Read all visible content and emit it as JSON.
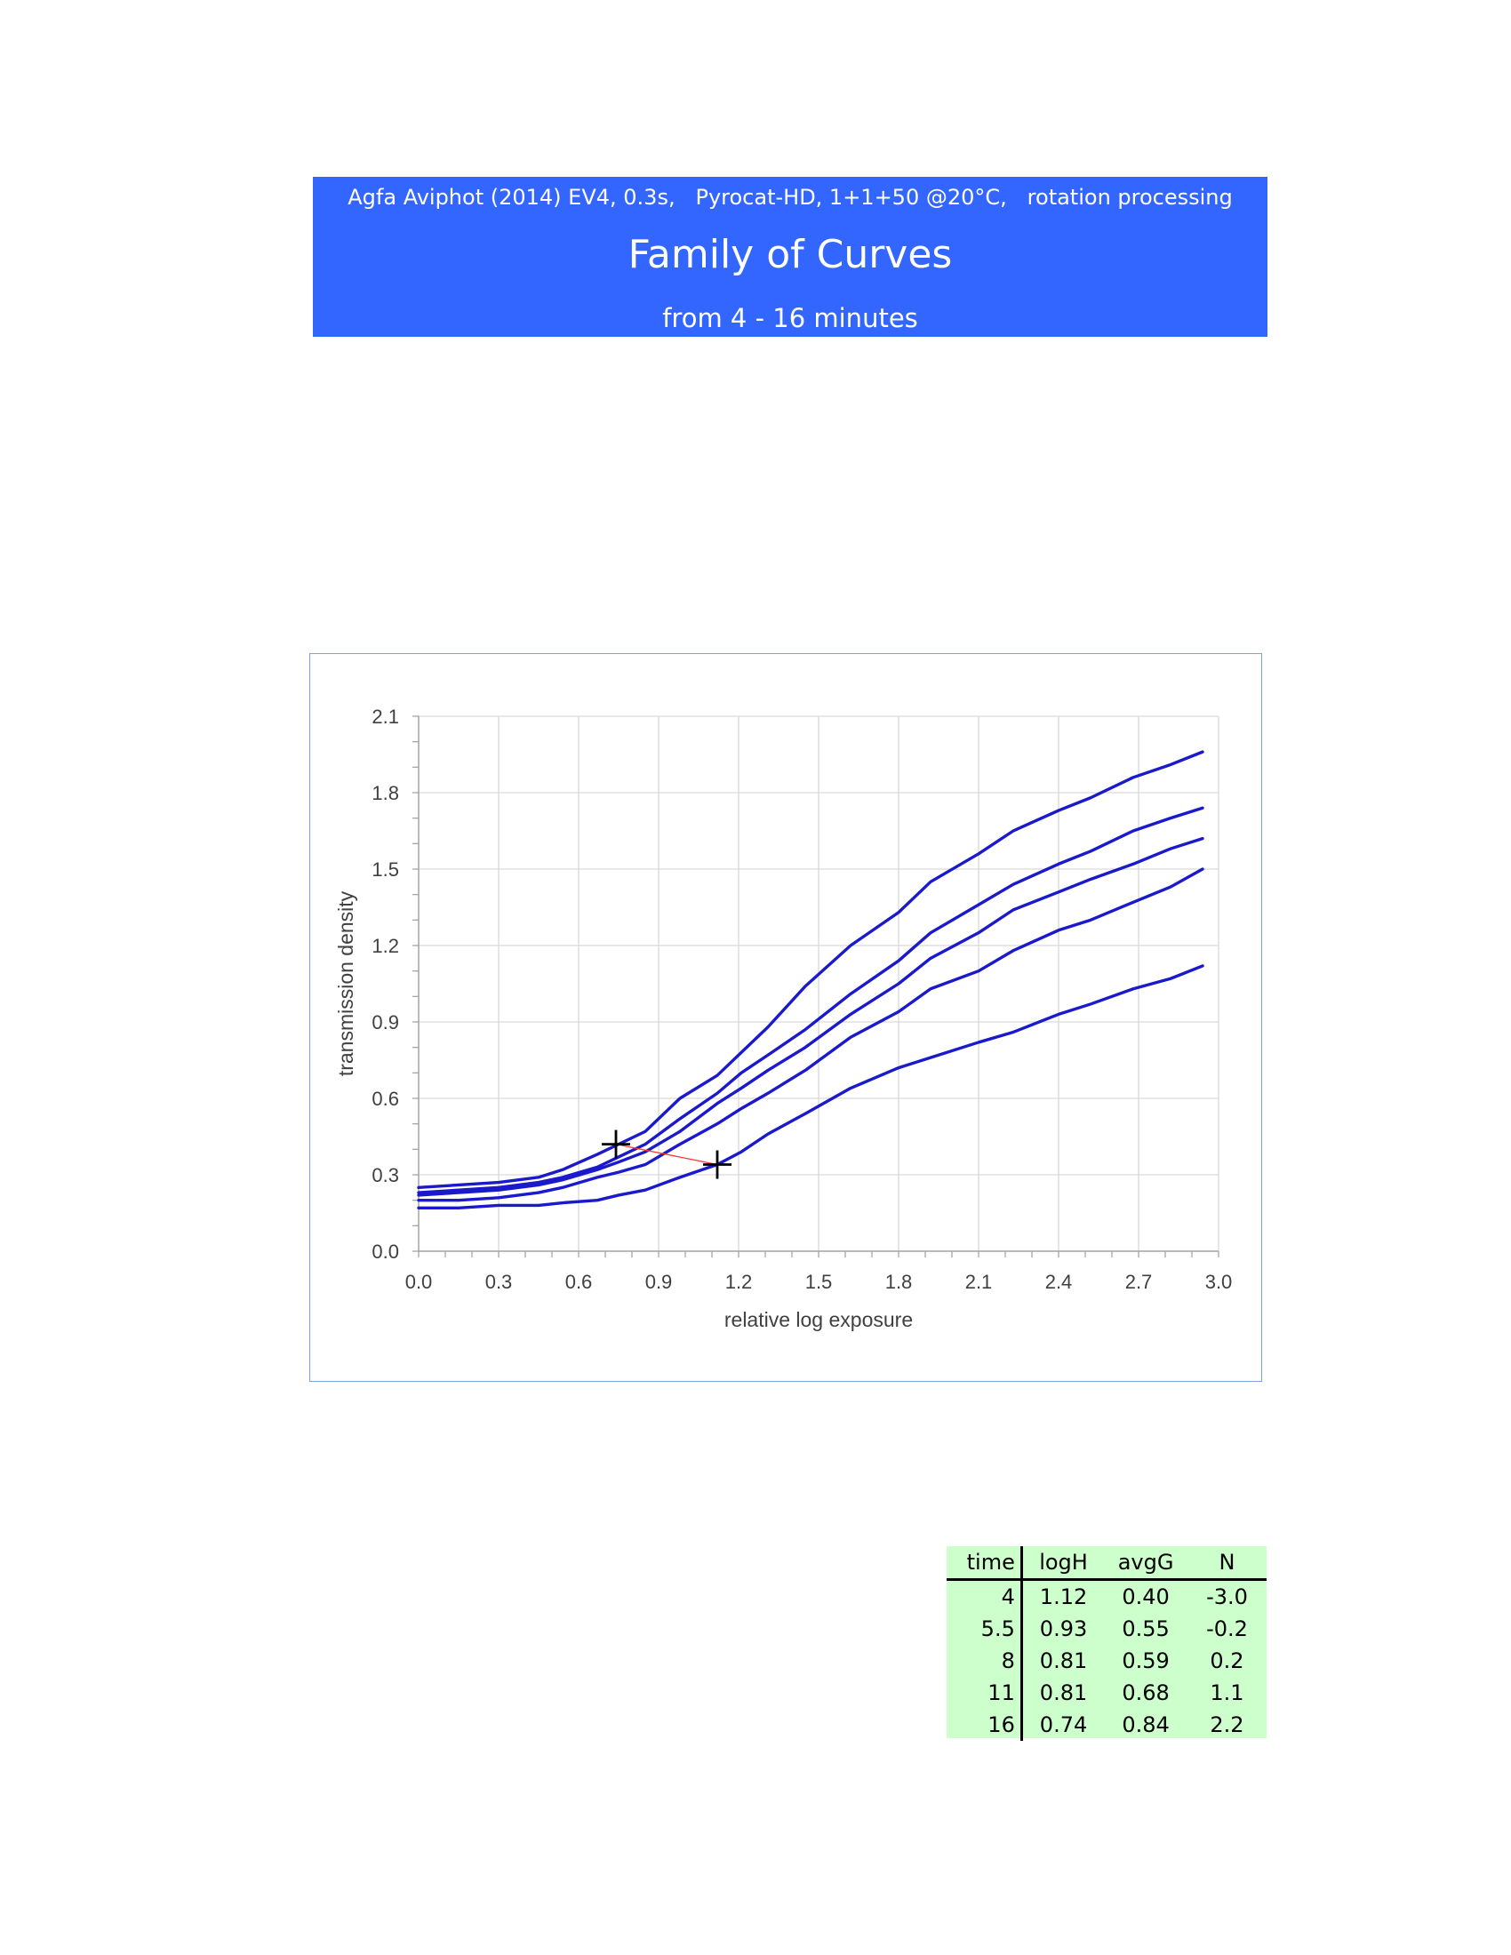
{
  "header": {
    "top_line": "Agfa Aviphot (2014) EV4, 0.3s,   Pyrocat-HD, 1+1+50 @20°C,   rotation processing",
    "title": "Family of Curves",
    "subtitle": "from 4 - 16 minutes",
    "background": "#3366ff"
  },
  "chart_data": {
    "type": "line",
    "xlabel": "relative log exposure",
    "ylabel": "transmission density",
    "xlim": [
      0.0,
      3.0
    ],
    "ylim": [
      0.0,
      2.1
    ],
    "xticks": [
      "0.0",
      "0.3",
      "0.6",
      "0.9",
      "1.2",
      "1.5",
      "1.8",
      "2.1",
      "2.4",
      "2.7",
      "3.0"
    ],
    "yticks": [
      "0.0",
      "0.3",
      "0.6",
      "0.9",
      "1.2",
      "1.5",
      "1.8",
      "2.1"
    ],
    "grid": true,
    "line_color": "#1a1acc",
    "series": [
      {
        "values_x": [
          0.0,
          0.15,
          0.3,
          0.45,
          0.54,
          0.67,
          0.75,
          0.85,
          0.98,
          1.12,
          1.21,
          1.31,
          1.45,
          1.62,
          1.8,
          1.92,
          2.1,
          2.23,
          2.4,
          2.52,
          2.68,
          2.82,
          2.94
        ],
        "values_y": [
          0.17,
          0.17,
          0.18,
          0.18,
          0.19,
          0.2,
          0.22,
          0.24,
          0.29,
          0.34,
          0.39,
          0.46,
          0.54,
          0.64,
          0.72,
          0.76,
          0.82,
          0.86,
          0.93,
          0.97,
          1.03,
          1.07,
          1.12
        ]
      },
      {
        "values_x": [
          0.0,
          0.15,
          0.3,
          0.45,
          0.54,
          0.67,
          0.75,
          0.85,
          0.98,
          1.12,
          1.21,
          1.31,
          1.45,
          1.62,
          1.8,
          1.92,
          2.1,
          2.23,
          2.4,
          2.52,
          2.68,
          2.82,
          2.94
        ],
        "values_y": [
          0.2,
          0.2,
          0.21,
          0.23,
          0.25,
          0.29,
          0.31,
          0.34,
          0.42,
          0.5,
          0.56,
          0.62,
          0.71,
          0.84,
          0.94,
          1.03,
          1.1,
          1.18,
          1.26,
          1.3,
          1.37,
          1.43,
          1.5
        ]
      },
      {
        "values_x": [
          0.0,
          0.15,
          0.3,
          0.45,
          0.54,
          0.67,
          0.75,
          0.85,
          0.98,
          1.12,
          1.21,
          1.31,
          1.45,
          1.62,
          1.8,
          1.92,
          2.1,
          2.23,
          2.4,
          2.52,
          2.68,
          2.82,
          2.94
        ],
        "values_y": [
          0.22,
          0.23,
          0.24,
          0.26,
          0.28,
          0.32,
          0.35,
          0.39,
          0.47,
          0.58,
          0.64,
          0.71,
          0.8,
          0.93,
          1.05,
          1.15,
          1.25,
          1.34,
          1.41,
          1.46,
          1.52,
          1.58,
          1.62
        ]
      },
      {
        "values_x": [
          0.0,
          0.15,
          0.3,
          0.45,
          0.54,
          0.67,
          0.75,
          0.85,
          0.98,
          1.12,
          1.21,
          1.31,
          1.45,
          1.62,
          1.8,
          1.92,
          2.1,
          2.23,
          2.4,
          2.52,
          2.68,
          2.82,
          2.94
        ],
        "values_y": [
          0.23,
          0.24,
          0.25,
          0.27,
          0.29,
          0.33,
          0.37,
          0.42,
          0.52,
          0.62,
          0.7,
          0.77,
          0.87,
          1.01,
          1.14,
          1.25,
          1.36,
          1.44,
          1.52,
          1.57,
          1.65,
          1.7,
          1.74
        ]
      },
      {
        "values_x": [
          0.0,
          0.15,
          0.3,
          0.45,
          0.54,
          0.67,
          0.75,
          0.85,
          0.98,
          1.12,
          1.21,
          1.31,
          1.45,
          1.62,
          1.8,
          1.92,
          2.1,
          2.23,
          2.4,
          2.52,
          2.68,
          2.82,
          2.94
        ],
        "values_y": [
          0.25,
          0.26,
          0.27,
          0.29,
          0.32,
          0.38,
          0.42,
          0.47,
          0.6,
          0.69,
          0.78,
          0.88,
          1.04,
          1.2,
          1.33,
          1.45,
          1.56,
          1.65,
          1.73,
          1.78,
          1.86,
          1.91,
          1.96
        ]
      }
    ],
    "markers": [
      {
        "x": 0.74,
        "y": 0.42
      },
      {
        "x": 1.12,
        "y": 0.34
      }
    ],
    "marker_line_color": "#ff3333"
  },
  "table": {
    "headers": [
      "time",
      "logH",
      "avgG",
      "N"
    ],
    "rows": [
      [
        "4",
        "1.12",
        "0.40",
        "-3.0"
      ],
      [
        "5.5",
        "0.93",
        "0.55",
        "-0.2"
      ],
      [
        "8",
        "0.81",
        "0.59",
        "0.2"
      ],
      [
        "11",
        "0.81",
        "0.68",
        "1.1"
      ],
      [
        "16",
        "0.74",
        "0.84",
        "2.2"
      ]
    ],
    "background": "#ccffcc"
  }
}
